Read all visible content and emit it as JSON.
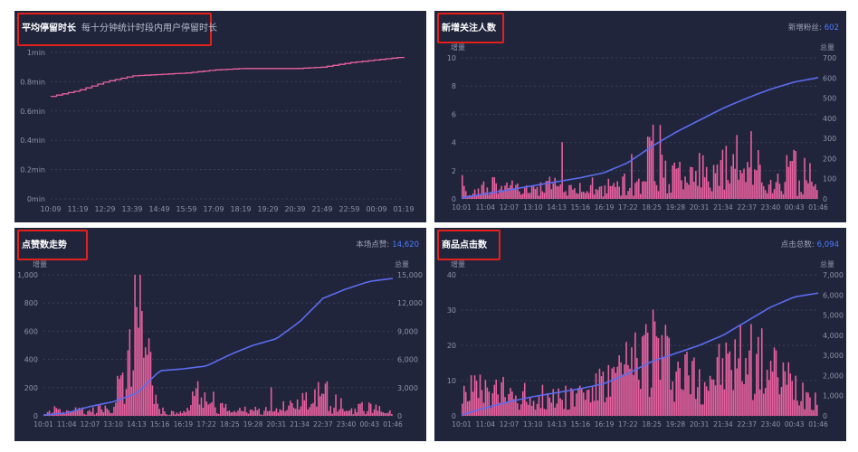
{
  "panels": {
    "stay": {
      "title": "平均停留时长",
      "subtitle": "每十分钟统计时段内用户停留时长"
    },
    "follow": {
      "title": "新增关注人数",
      "stat_label": "新增粉丝:",
      "stat_value": "602"
    },
    "likes": {
      "title": "点赞数走势",
      "stat_label": "本场点赞:",
      "stat_value": "14,620"
    },
    "clicks": {
      "title": "商品点击数",
      "stat_label": "点击总数:",
      "stat_value": "6,094"
    }
  },
  "colors": {
    "background": "#20253b",
    "increment": "#e9609f",
    "total": "#5b6cf0",
    "highlight": "#e3211c"
  },
  "chart_data": [
    {
      "type": "line",
      "panel": "stay",
      "title": "平均停留时长",
      "subtitle": "每十分钟统计时段内用户停留时长",
      "yticks": [
        "1min",
        "0.8min",
        "0.6min",
        "0.4min",
        "0.2min",
        "0min"
      ],
      "ylim": [
        0,
        1
      ],
      "grid": true,
      "x": [
        "10:09",
        "11:19",
        "12:29",
        "13:39",
        "14:49",
        "15:59",
        "17:09",
        "18:19",
        "19:29",
        "20:39",
        "21:49",
        "22:59",
        "00:09",
        "01:19"
      ],
      "series": [
        {
          "color": "#e9609f",
          "values": [
            0.7,
            0.74,
            0.8,
            0.84,
            0.85,
            0.86,
            0.88,
            0.89,
            0.89,
            0.89,
            0.9,
            0.93,
            0.95,
            0.97
          ]
        }
      ]
    },
    {
      "type": "bar+line",
      "panel": "follow",
      "title": "新增关注人数",
      "ylabel_left": "增量",
      "ylabel_right": "总量",
      "left_ticks": [
        "0",
        "2",
        "4",
        "6",
        "8",
        "10"
      ],
      "right_ticks": [
        "0",
        "100",
        "200",
        "300",
        "400",
        "500",
        "600",
        "700"
      ],
      "ylim_left": [
        0,
        10
      ],
      "ylim_right": [
        0,
        700
      ],
      "x": [
        "10:01",
        "11:04",
        "12:07",
        "13:10",
        "14:13",
        "15:16",
        "16:19",
        "17:22",
        "18:25",
        "19:28",
        "20:31",
        "21:34",
        "22:37",
        "23:40",
        "00:43",
        "01:46"
      ],
      "series": [
        {
          "kind": "bar",
          "color": "#e9609f",
          "values": [
            1,
            1,
            1,
            1,
            1,
            1,
            1,
            2,
            3,
            3,
            2,
            2,
            3,
            2,
            2,
            2
          ]
        },
        {
          "kind": "line",
          "color": "#5b6cf0",
          "values": [
            5,
            25,
            45,
            65,
            85,
            105,
            130,
            180,
            260,
            330,
            390,
            450,
            500,
            545,
            580,
            602
          ]
        }
      ]
    },
    {
      "type": "bar+line",
      "panel": "likes",
      "title": "点赞数走势",
      "ylabel_left": "增量",
      "ylabel_right": "总量",
      "left_ticks": [
        "0",
        "200",
        "400",
        "600",
        "800",
        "1,000"
      ],
      "right_ticks": [
        "0",
        "3,000",
        "6,000",
        "9,000",
        "12,000",
        "15,000"
      ],
      "ylim_left": [
        0,
        1000
      ],
      "ylim_right": [
        0,
        15000
      ],
      "x": [
        "10:01",
        "11:04",
        "12:07",
        "13:10",
        "14:13",
        "15:16",
        "16:19",
        "17:22",
        "18:25",
        "19:28",
        "20:31",
        "21:34",
        "22:37",
        "23:40",
        "00:43",
        "01:46"
      ],
      "series": [
        {
          "kind": "bar",
          "color": "#e9609f",
          "values": [
            60,
            40,
            50,
            40,
            900,
            40,
            40,
            200,
            40,
            40,
            50,
            80,
            180,
            60,
            60,
            20
          ]
        },
        {
          "kind": "line",
          "color": "#5b6cf0",
          "values": [
            100,
            300,
            1000,
            1500,
            2400,
            4800,
            5000,
            5300,
            6500,
            7500,
            8200,
            10000,
            12500,
            13500,
            14300,
            14620
          ]
        }
      ]
    },
    {
      "type": "bar+line",
      "panel": "clicks",
      "title": "商品点击数",
      "ylabel_left": "增量",
      "ylabel_right": "总量",
      "left_ticks": [
        "0",
        "10",
        "20",
        "30",
        "40"
      ],
      "right_ticks": [
        "0",
        "1,000",
        "2,000",
        "3,000",
        "4,000",
        "5,000",
        "6,000",
        "7,000"
      ],
      "ylim_left": [
        0,
        40
      ],
      "ylim_right": [
        0,
        7000
      ],
      "x": [
        "10:01",
        "11:04",
        "12:07",
        "13:10",
        "14:13",
        "15:16",
        "16:19",
        "17:22",
        "18:25",
        "19:28",
        "20:31",
        "21:34",
        "22:37",
        "23:40",
        "00:43",
        "01:46"
      ],
      "series": [
        {
          "kind": "bar",
          "color": "#e9609f",
          "values": [
            8,
            6,
            6,
            5,
            5,
            6,
            8,
            12,
            20,
            12,
            10,
            12,
            16,
            12,
            8,
            5
          ]
        },
        {
          "kind": "line",
          "color": "#5b6cf0",
          "values": [
            50,
            400,
            700,
            950,
            1150,
            1350,
            1600,
            2100,
            2700,
            3100,
            3500,
            4000,
            4700,
            5400,
            5900,
            6094
          ]
        }
      ]
    }
  ]
}
